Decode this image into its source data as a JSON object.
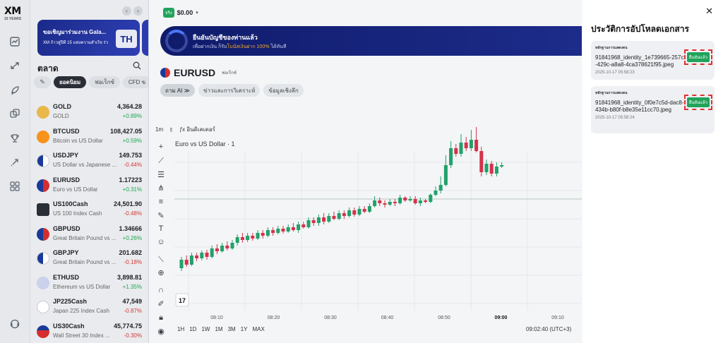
{
  "app": {
    "logo_text": "XM",
    "logo_sub": "15 YEARS"
  },
  "rail_icons": [
    "chart-icon",
    "transfer-icon",
    "rocket-icon",
    "copy-icon",
    "trophy-icon",
    "launch-icon",
    "apps-icon",
    "support-icon"
  ],
  "promo": {
    "title": "ขอเชิญมาร่วมงาน Gala...",
    "text": "XM ก้าวสู่ปีที่ 15 แห่งความสำเร็จ ร่วมฉลองและพบปะกับศาสตร์...",
    "badge": "TH"
  },
  "market": {
    "title": "ตลาด",
    "filters": [
      "ยอดนิยม",
      "ฟอเร็กซ์",
      "CFD ข"
    ],
    "items": [
      {
        "symbol": "GOLD",
        "desc": "GOLD",
        "price": "4,364.28",
        "change": "+0.89%",
        "dir": "up",
        "flag": "gold"
      },
      {
        "symbol": "BTCUSD",
        "desc": "Bitcoin vs US Dollar",
        "price": "108,427.05",
        "change": "+0.59%",
        "dir": "up",
        "flag": "btc"
      },
      {
        "symbol": "USDJPY",
        "desc": "US Dollar vs Japanese ...",
        "price": "149.753",
        "change": "-0.44%",
        "dir": "down",
        "flag": "usjp"
      },
      {
        "symbol": "EURUSD",
        "desc": "Euro vs US Dollar",
        "price": "1.17223",
        "change": "+0.31%",
        "dir": "up",
        "flag": "euus"
      },
      {
        "symbol": "US100Cash",
        "desc": "US 100 Index Cash",
        "price": "24,501.90",
        "change": "-0.48%",
        "dir": "down",
        "flag": "us100"
      },
      {
        "symbol": "GBPUSD",
        "desc": "Great Britain Pound vs ...",
        "price": "1.34666",
        "change": "+0.26%",
        "dir": "up",
        "flag": "gbus"
      },
      {
        "symbol": "GBPJPY",
        "desc": "Great Britain Pound vs ...",
        "price": "201.682",
        "change": "-0.18%",
        "dir": "down",
        "flag": "gbjp"
      },
      {
        "symbol": "ETHUSD",
        "desc": "Ethereum vs US Dollar",
        "price": "3,898.81",
        "change": "+1.35%",
        "dir": "up",
        "flag": "eth"
      },
      {
        "symbol": "JP225Cash",
        "desc": "Japan 225 Index Cash",
        "price": "47,549",
        "change": "-0.87%",
        "dir": "down",
        "flag": "jp"
      },
      {
        "symbol": "US30Cash",
        "desc": "Wall Street 30 Index ...",
        "price": "45,774.75",
        "change": "-0.30%",
        "dir": "down",
        "flag": "us30"
      }
    ]
  },
  "account": {
    "badge": "จริง",
    "balance": "$0.00"
  },
  "verify_banner": {
    "title": "ยืนยันบัญชีของท่านแล้ว",
    "text_pre": "เพื่อฝากเงิน ก็รับ",
    "text_highlight": "โบนัสเงินฝาก 100%",
    "text_post": " ได้ทันที"
  },
  "symbol": {
    "name": "EURUSD",
    "fav_label": "ฟอเร็กซ์"
  },
  "tabs": [
    "ถาม AI ≫",
    "ข่าวและการวิเคราะห์",
    "ข้อมูลเชิงลึก"
  ],
  "toolbar": {
    "interval": "1m",
    "indicators": "อินดิเคเตอร์"
  },
  "chart_title": "Euro vs US Dollar · 1",
  "chart_data": {
    "type": "candlestick",
    "x_ticks": [
      "08:10",
      "08:20",
      "08:30",
      "08:40",
      "08:50",
      "09:00",
      "09:10"
    ],
    "candles_direction": "rising",
    "note": ""
  },
  "timeframes": [
    "1H",
    "1D",
    "1W",
    "1M",
    "3M",
    "1Y",
    "MAX"
  ],
  "clock": "09:02:40 (UTC+3)",
  "drawer": {
    "title": "ประวัติการอัปโหลดเอกสาร",
    "docs": [
      {
        "kind": "หลักฐานการแสดงตน",
        "file": "91841968_identity_1e739665-257c-429c-a8a8-4ca378621f95.jpeg",
        "date": "2025-10-17 05:58:23",
        "status": "ยืนยันแล้ว"
      },
      {
        "kind": "หลักฐานการแสดงตน",
        "file": "91841968_identity_0f0e7c5d-dac8-434b-b80f-b8e35e11cc70.jpeg",
        "date": "2025-10-17 05:58:24",
        "status": "ยืนยันแล้ว"
      }
    ]
  }
}
